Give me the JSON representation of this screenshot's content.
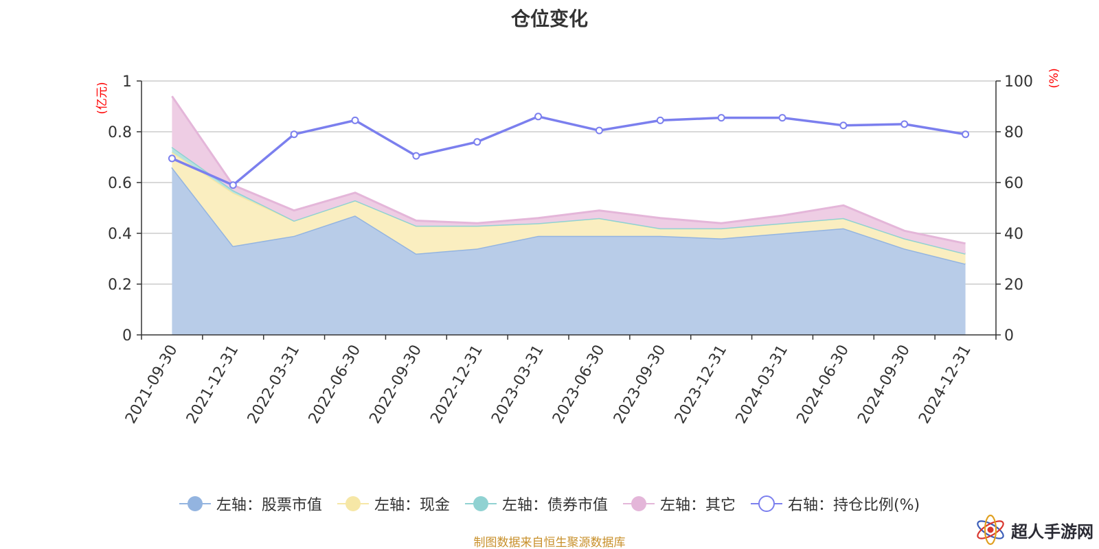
{
  "chart_data": {
    "type": "area",
    "title": "仓位变化",
    "x": [
      "2021-09-30",
      "2021-12-31",
      "2022-03-31",
      "2022-06-30",
      "2022-09-30",
      "2022-12-31",
      "2023-03-31",
      "2023-06-30",
      "2023-09-30",
      "2023-12-31",
      "2024-03-31",
      "2024-06-30",
      "2024-09-30",
      "2024-12-31"
    ],
    "left_axis": {
      "unit_label": "(亿元)",
      "ylim": [
        0,
        1
      ],
      "ticks": [
        "1",
        "0.8",
        "0.6",
        "0.4",
        "0.2",
        "0"
      ]
    },
    "right_axis": {
      "unit_label": "(%)",
      "ylim": [
        0,
        100
      ],
      "ticks": [
        "100",
        "80",
        "60",
        "40",
        "20",
        "0"
      ]
    },
    "stacked": true,
    "series": [
      {
        "name": "左轴：股票市值",
        "axis": "left",
        "color": "#93b4e0",
        "fill": "#b8cce8",
        "values": [
          0.66,
          0.35,
          0.39,
          0.47,
          0.32,
          0.34,
          0.39,
          0.39,
          0.39,
          0.38,
          0.4,
          0.42,
          0.34,
          0.28
        ]
      },
      {
        "name": "左轴：现金",
        "axis": "left",
        "color": "#f6e7a6",
        "fill": "#faeec0",
        "values": [
          0.06,
          0.21,
          0.06,
          0.06,
          0.11,
          0.09,
          0.05,
          0.07,
          0.03,
          0.04,
          0.04,
          0.04,
          0.04,
          0.04
        ]
      },
      {
        "name": "左轴：债券市值",
        "axis": "left",
        "color": "#90d2d2",
        "fill": "#b6e2e0",
        "values": [
          0.02,
          0.01,
          0.0,
          0.0,
          0.0,
          0.0,
          0.0,
          0.0,
          0.0,
          0.0,
          0.0,
          0.0,
          0.0,
          0.0
        ]
      },
      {
        "name": "左轴：其它",
        "axis": "left",
        "color": "#e4b6d9",
        "fill": "#eecde4",
        "values": [
          0.2,
          0.02,
          0.04,
          0.03,
          0.02,
          0.01,
          0.02,
          0.03,
          0.04,
          0.02,
          0.03,
          0.05,
          0.03,
          0.04
        ]
      },
      {
        "name": "右轴：持仓比例(%)",
        "axis": "right",
        "type": "line",
        "color": "#7b7fee",
        "values": [
          69.5,
          59,
          79,
          84.5,
          70.5,
          76,
          86,
          80.5,
          84.5,
          85.5,
          85.5,
          82.5,
          83,
          79
        ]
      }
    ],
    "grid": true,
    "legend_position": "bottom"
  },
  "source_note": "制图数据来自恒生聚源数据库",
  "watermark": {
    "text": "超人手游网",
    "icon": "atom-logo-icon"
  }
}
